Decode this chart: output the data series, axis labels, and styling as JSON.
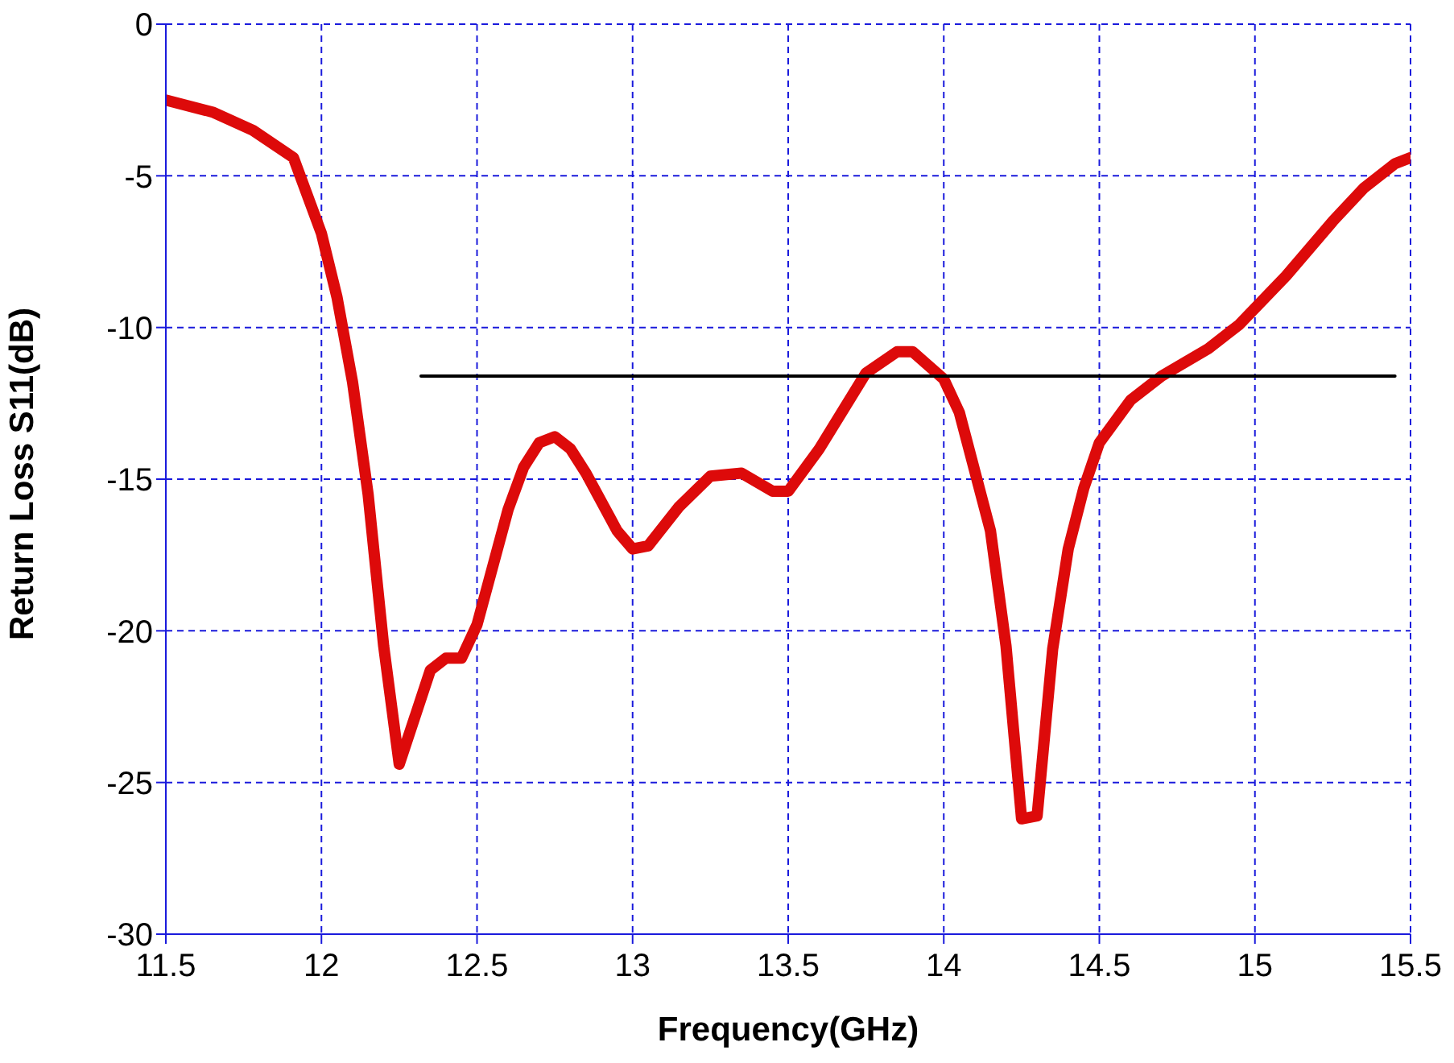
{
  "chart_data": {
    "type": "line",
    "xlabel": "Frequency(GHz)",
    "ylabel": "Return Loss S11(dB)",
    "xlim": [
      11.5,
      15.5
    ],
    "xticks": [
      11.5,
      12,
      12.5,
      13,
      13.5,
      14,
      14.5,
      15,
      15.5
    ],
    "ylim": [
      -30,
      0
    ],
    "yticks": [
      -30,
      -25,
      -20,
      -15,
      -10,
      -5,
      0
    ],
    "grid": true,
    "legend": false,
    "marker": "none",
    "line_style": "solid",
    "series": [
      {
        "color": "#dd0a0a",
        "x": [
          11.5,
          11.65,
          11.78,
          11.91,
          12.0,
          12.05,
          12.1,
          12.15,
          12.2,
          12.25,
          12.35,
          12.4,
          12.45,
          12.5,
          12.6,
          12.65,
          12.7,
          12.75,
          12.8,
          12.85,
          12.95,
          13.0,
          13.05,
          13.15,
          13.25,
          13.35,
          13.45,
          13.5,
          13.6,
          13.75,
          13.85,
          13.9,
          14.0,
          14.05,
          14.15,
          14.2,
          14.25,
          14.3,
          14.35,
          14.4,
          14.45,
          14.5,
          14.6,
          14.7,
          14.85,
          14.95,
          15.1,
          15.25,
          15.35,
          15.45,
          15.5
        ],
        "values": [
          -2.5,
          -2.9,
          -3.5,
          -4.4,
          -6.9,
          -9,
          -11.8,
          -15.5,
          -20.5,
          -24.4,
          -21.3,
          -20.9,
          -20.9,
          -19.8,
          -16,
          -14.6,
          -13.8,
          -13.6,
          -14,
          -14.8,
          -16.7,
          -17.3,
          -17.2,
          -15.9,
          -14.9,
          -14.8,
          -15.4,
          -15.4,
          -14,
          -11.5,
          -10.8,
          -10.8,
          -11.7,
          -12.8,
          -16.7,
          -20.5,
          -26.2,
          -26.1,
          -20.6,
          -17.3,
          -15.3,
          -13.8,
          -12.4,
          -11.6,
          -10.7,
          -9.9,
          -8.3,
          -6.5,
          -5.4,
          -4.6,
          -4.4
        ]
      },
      {
        "color": "#000000",
        "x": [
          12.32,
          15.45
        ],
        "values": [
          -11.6,
          -11.6
        ]
      }
    ]
  }
}
